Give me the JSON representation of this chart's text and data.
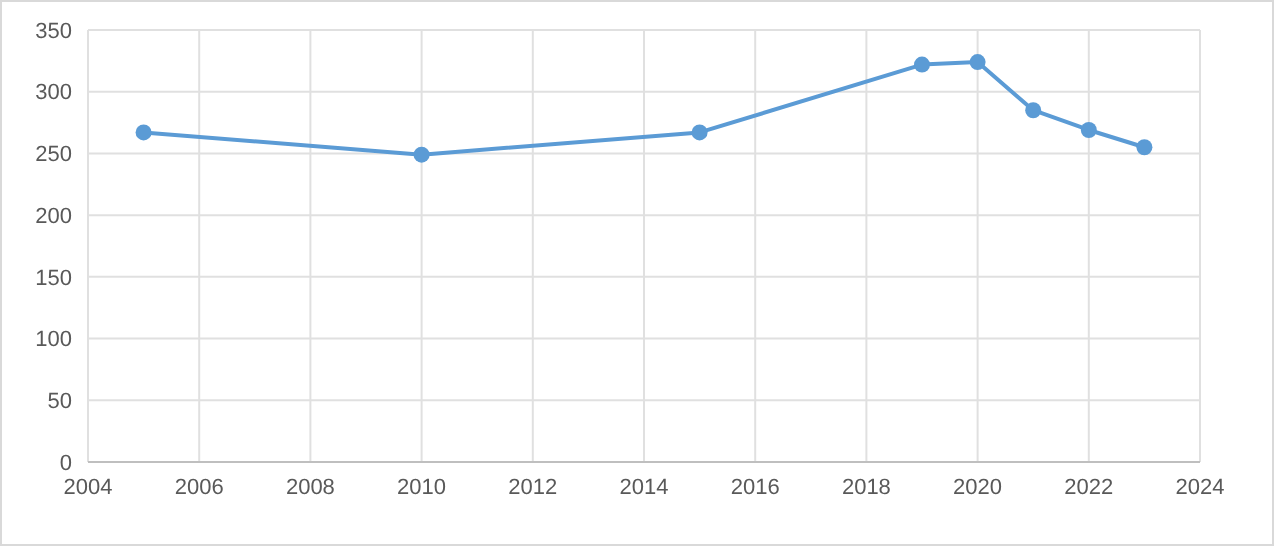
{
  "chart_data": {
    "type": "line",
    "x": [
      2005,
      2010,
      2015,
      2019,
      2020,
      2021,
      2022,
      2023
    ],
    "series": [
      {
        "color": "#5b9bd5",
        "values": [
          267,
          249,
          267,
          322,
          324,
          285,
          269,
          255
        ]
      }
    ],
    "xlim": [
      2004,
      2024
    ],
    "xticks": [
      2004,
      2006,
      2008,
      2010,
      2012,
      2014,
      2016,
      2018,
      2020,
      2022,
      2024
    ],
    "ylim": [
      0,
      350
    ],
    "yticks": [
      0,
      50,
      100,
      150,
      200,
      250,
      300,
      350
    ],
    "grid": true,
    "marker": "circle",
    "line_style": "solid"
  }
}
